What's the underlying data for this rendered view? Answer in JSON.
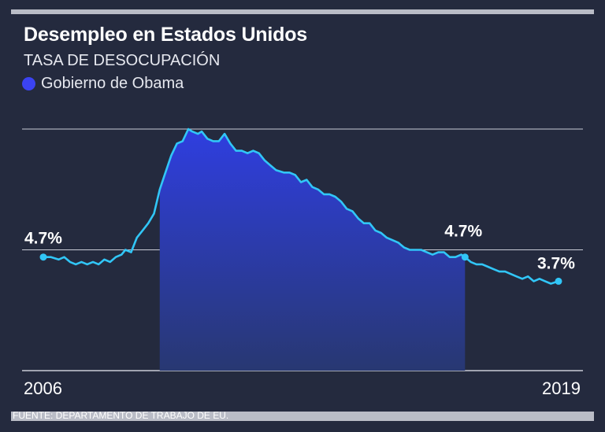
{
  "title": "Desempleo en Estados Unidos",
  "subtitle": "TASA DE DESOCUPACIÓN",
  "legend": {
    "label": "Gobierno de Obama",
    "color": "#3b43f2"
  },
  "source": "FUENTE: DEPARTAMENTO DE TRABAJO DE EU.",
  "colors": {
    "line": "#31c6f7",
    "area_top": "#2f3ee0",
    "area_bottom": "#283872",
    "background": "#242a3e",
    "grid": "#c9ccd6"
  },
  "chart_data": {
    "type": "area",
    "title": "Desempleo en Estados Unidos",
    "ylabel": "TASA DE DESOCUPACIÓN",
    "unit": "%",
    "xlim": [
      2006.0,
      2019.6
    ],
    "ylim": [
      0,
      10
    ],
    "gridlines": [
      0,
      5,
      10
    ],
    "x_tick_labels": [
      {
        "x": 2006.0,
        "label": "2006"
      },
      {
        "x": 2019.5,
        "label": "2019"
      }
    ],
    "shaded_range": {
      "start": 2009.05,
      "end": 2017.05,
      "label": "Gobierno de Obama"
    },
    "series": [
      {
        "name": "Tasa de desocupación",
        "points": [
          [
            2006.0,
            4.7
          ],
          [
            2006.2,
            4.7
          ],
          [
            2006.4,
            4.6
          ],
          [
            2006.55,
            4.7
          ],
          [
            2006.7,
            4.5
          ],
          [
            2006.85,
            4.4
          ],
          [
            2007.0,
            4.5
          ],
          [
            2007.15,
            4.4
          ],
          [
            2007.3,
            4.5
          ],
          [
            2007.45,
            4.4
          ],
          [
            2007.6,
            4.6
          ],
          [
            2007.75,
            4.5
          ],
          [
            2007.9,
            4.7
          ],
          [
            2008.05,
            4.8
          ],
          [
            2008.15,
            5.0
          ],
          [
            2008.3,
            4.9
          ],
          [
            2008.45,
            5.5
          ],
          [
            2008.6,
            5.8
          ],
          [
            2008.75,
            6.1
          ],
          [
            2008.9,
            6.5
          ],
          [
            2009.05,
            7.5
          ],
          [
            2009.2,
            8.2
          ],
          [
            2009.35,
            8.9
          ],
          [
            2009.5,
            9.4
          ],
          [
            2009.65,
            9.5
          ],
          [
            2009.8,
            10.0
          ],
          [
            2009.9,
            9.9
          ],
          [
            2010.05,
            9.8
          ],
          [
            2010.15,
            9.9
          ],
          [
            2010.3,
            9.6
          ],
          [
            2010.45,
            9.5
          ],
          [
            2010.6,
            9.5
          ],
          [
            2010.75,
            9.8
          ],
          [
            2010.9,
            9.4
          ],
          [
            2011.05,
            9.1
          ],
          [
            2011.2,
            9.1
          ],
          [
            2011.35,
            9.0
          ],
          [
            2011.5,
            9.1
          ],
          [
            2011.65,
            9.0
          ],
          [
            2011.8,
            8.7
          ],
          [
            2011.95,
            8.5
          ],
          [
            2012.1,
            8.3
          ],
          [
            2012.3,
            8.2
          ],
          [
            2012.45,
            8.2
          ],
          [
            2012.6,
            8.1
          ],
          [
            2012.75,
            7.8
          ],
          [
            2012.9,
            7.9
          ],
          [
            2013.05,
            7.6
          ],
          [
            2013.2,
            7.5
          ],
          [
            2013.35,
            7.3
          ],
          [
            2013.5,
            7.3
          ],
          [
            2013.65,
            7.2
          ],
          [
            2013.8,
            7.0
          ],
          [
            2013.95,
            6.7
          ],
          [
            2014.1,
            6.6
          ],
          [
            2014.25,
            6.3
          ],
          [
            2014.4,
            6.1
          ],
          [
            2014.55,
            6.1
          ],
          [
            2014.7,
            5.8
          ],
          [
            2014.85,
            5.7
          ],
          [
            2015.0,
            5.5
          ],
          [
            2015.15,
            5.4
          ],
          [
            2015.3,
            5.3
          ],
          [
            2015.45,
            5.1
          ],
          [
            2015.6,
            5.0
          ],
          [
            2015.75,
            5.0
          ],
          [
            2015.9,
            5.0
          ],
          [
            2016.05,
            4.9
          ],
          [
            2016.2,
            4.8
          ],
          [
            2016.35,
            4.9
          ],
          [
            2016.5,
            4.9
          ],
          [
            2016.65,
            4.7
          ],
          [
            2016.8,
            4.7
          ],
          [
            2016.95,
            4.8
          ],
          [
            2017.05,
            4.7
          ],
          [
            2017.2,
            4.5
          ],
          [
            2017.35,
            4.4
          ],
          [
            2017.5,
            4.4
          ],
          [
            2017.65,
            4.3
          ],
          [
            2017.8,
            4.2
          ],
          [
            2017.95,
            4.1
          ],
          [
            2018.1,
            4.1
          ],
          [
            2018.25,
            4.0
          ],
          [
            2018.4,
            3.9
          ],
          [
            2018.55,
            3.8
          ],
          [
            2018.7,
            3.9
          ],
          [
            2018.85,
            3.7
          ],
          [
            2019.0,
            3.8
          ],
          [
            2019.15,
            3.7
          ],
          [
            2019.3,
            3.6
          ],
          [
            2019.5,
            3.7
          ]
        ]
      }
    ],
    "data_labels": [
      {
        "x": 2006.0,
        "y": 4.7,
        "text": "4.7%",
        "dot": true
      },
      {
        "x": 2017.05,
        "y": 4.7,
        "text": "4.7%",
        "dot": true
      },
      {
        "x": 2019.5,
        "y": 3.7,
        "text": "3.7%",
        "dot": true
      }
    ]
  }
}
